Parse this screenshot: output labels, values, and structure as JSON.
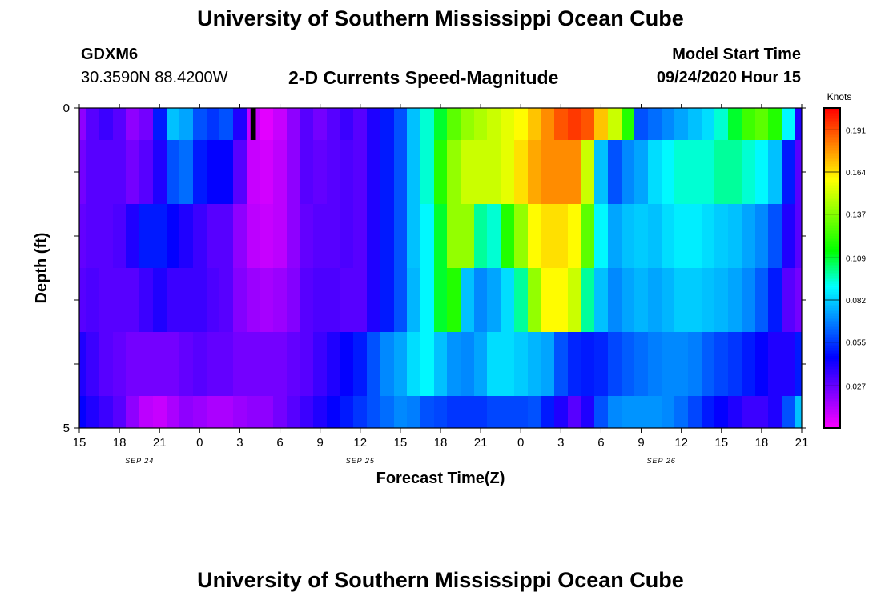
{
  "header": {
    "title": "University of Southern Mississippi Ocean Cube",
    "station_id": "GDXM6",
    "coordinates": "30.3590N 88.4200W",
    "plot_title": "2-D Currents Speed-Magnitude",
    "model_start_label": "Model Start Time",
    "model_start_value": "09/24/2020 Hour 15"
  },
  "footer": {
    "title": "University of Southern Mississippi Ocean Cube"
  },
  "colors": {
    "scale": [
      "#ff00ff",
      "#8000ff",
      "#0000ff",
      "#0080ff",
      "#00ffff",
      "#00ff00",
      "#80ff00",
      "#ffff00",
      "#ff8000",
      "#ff0000"
    ]
  },
  "chart_data": {
    "type": "heatmap",
    "title": "2-D Currents Speed-Magnitude",
    "xlabel": "Forecast Time(Z)",
    "ylabel": "Depth (ft)",
    "x_tick_labels": [
      "15",
      "18",
      "21",
      "0",
      "3",
      "6",
      "9",
      "12",
      "15",
      "18",
      "21",
      "0",
      "3",
      "6",
      "9",
      "12",
      "15",
      "18",
      "21"
    ],
    "x_ticks_hours": [
      0,
      3,
      6,
      9,
      12,
      15,
      18,
      21,
      24,
      27,
      30,
      33,
      36,
      39,
      42,
      45,
      48,
      51,
      54
    ],
    "xlim_hours": [
      0,
      54
    ],
    "date_labels": [
      {
        "text": "SEP 24",
        "hour": 4.5
      },
      {
        "text": "SEP 25",
        "hour": 21
      },
      {
        "text": "SEP 26",
        "hour": 43.5
      }
    ],
    "y_tick_labels": [
      "0",
      "5"
    ],
    "ylim_ft": [
      0,
      5
    ],
    "colorbar": {
      "unit": "Knots",
      "range": [
        0,
        0.205
      ],
      "labels": [
        "0.191",
        "0.164",
        "0.137",
        "0.109",
        "0.082",
        "0.055",
        "0.027"
      ]
    },
    "depth_layers_ft": [
      [
        0,
        0.5
      ],
      [
        0.5,
        1.5
      ],
      [
        1.5,
        2.5
      ],
      [
        2.5,
        3.5
      ],
      [
        3.5,
        4.5
      ],
      [
        4.5,
        5.0
      ]
    ],
    "time_hours": [
      0,
      1,
      2,
      3,
      4,
      5,
      6,
      7,
      8,
      9,
      10,
      11,
      12,
      13,
      14,
      15,
      16,
      17,
      18,
      19,
      20,
      21,
      22,
      23,
      24,
      25,
      26,
      27,
      28,
      29,
      30,
      31,
      32,
      33,
      34,
      35,
      36,
      37,
      38,
      39,
      40,
      41,
      42,
      43,
      44,
      45,
      46,
      47,
      48,
      49,
      50,
      51,
      52,
      53,
      54
    ],
    "speed_knots": [
      [
        0.02,
        0.03,
        0.035,
        0.03,
        0.02,
        0.025,
        0.05,
        0.08,
        0.075,
        0.06,
        0.055,
        0.06,
        0.04,
        0.01,
        0.005,
        0.01,
        0.02,
        0.03,
        0.025,
        0.03,
        0.035,
        0.03,
        0.04,
        0.05,
        0.06,
        0.08,
        0.095,
        0.11,
        0.13,
        0.14,
        0.145,
        0.15,
        0.155,
        0.16,
        0.17,
        0.18,
        0.19,
        0.195,
        0.19,
        0.17,
        0.15,
        0.12,
        0.06,
        0.065,
        0.07,
        0.075,
        0.08,
        0.085,
        0.095,
        0.11,
        0.125,
        0.13,
        0.12,
        0.09,
        0.04
      ],
      [
        0.025,
        0.03,
        0.03,
        0.03,
        0.025,
        0.03,
        0.04,
        0.06,
        0.065,
        0.05,
        0.045,
        0.045,
        0.03,
        0.01,
        0.008,
        0.012,
        0.02,
        0.03,
        0.028,
        0.03,
        0.032,
        0.03,
        0.04,
        0.05,
        0.06,
        0.08,
        0.095,
        0.12,
        0.14,
        0.15,
        0.15,
        0.15,
        0.155,
        0.165,
        0.175,
        0.18,
        0.18,
        0.18,
        0.15,
        0.08,
        0.06,
        0.07,
        0.075,
        0.085,
        0.09,
        0.095,
        0.095,
        0.095,
        0.1,
        0.1,
        0.095,
        0.09,
        0.08,
        0.05,
        0.03
      ],
      [
        0.028,
        0.03,
        0.03,
        0.032,
        0.04,
        0.05,
        0.05,
        0.045,
        0.04,
        0.035,
        0.03,
        0.03,
        0.02,
        0.012,
        0.01,
        0.012,
        0.02,
        0.028,
        0.03,
        0.03,
        0.032,
        0.03,
        0.04,
        0.05,
        0.06,
        0.08,
        0.09,
        0.11,
        0.14,
        0.14,
        0.1,
        0.095,
        0.12,
        0.14,
        0.16,
        0.165,
        0.165,
        0.16,
        0.13,
        0.09,
        0.075,
        0.08,
        0.082,
        0.08,
        0.085,
        0.088,
        0.088,
        0.085,
        0.082,
        0.08,
        0.075,
        0.07,
        0.06,
        0.04,
        0.03
      ],
      [
        0.03,
        0.032,
        0.03,
        0.03,
        0.03,
        0.035,
        0.04,
        0.035,
        0.035,
        0.035,
        0.032,
        0.03,
        0.022,
        0.018,
        0.016,
        0.018,
        0.022,
        0.03,
        0.032,
        0.032,
        0.03,
        0.03,
        0.04,
        0.05,
        0.06,
        0.078,
        0.09,
        0.11,
        0.12,
        0.08,
        0.07,
        0.075,
        0.085,
        0.1,
        0.14,
        0.16,
        0.16,
        0.15,
        0.1,
        0.08,
        0.07,
        0.075,
        0.078,
        0.075,
        0.078,
        0.082,
        0.082,
        0.08,
        0.078,
        0.075,
        0.07,
        0.062,
        0.05,
        0.03,
        0.025
      ],
      [
        0.04,
        0.035,
        0.03,
        0.028,
        0.025,
        0.025,
        0.025,
        0.025,
        0.028,
        0.03,
        0.028,
        0.028,
        0.025,
        0.025,
        0.025,
        0.025,
        0.028,
        0.03,
        0.035,
        0.04,
        0.045,
        0.05,
        0.06,
        0.07,
        0.075,
        0.085,
        0.09,
        0.08,
        0.072,
        0.07,
        0.075,
        0.085,
        0.085,
        0.082,
        0.078,
        0.075,
        0.06,
        0.052,
        0.05,
        0.052,
        0.058,
        0.062,
        0.065,
        0.068,
        0.07,
        0.07,
        0.068,
        0.062,
        0.058,
        0.055,
        0.05,
        0.045,
        0.04,
        0.04,
        0.05
      ],
      [
        0.045,
        0.04,
        0.035,
        0.03,
        0.02,
        0.012,
        0.01,
        0.015,
        0.02,
        0.018,
        0.015,
        0.015,
        0.018,
        0.02,
        0.02,
        0.025,
        0.03,
        0.035,
        0.04,
        0.045,
        0.05,
        0.055,
        0.06,
        0.065,
        0.07,
        0.068,
        0.06,
        0.058,
        0.055,
        0.055,
        0.055,
        0.058,
        0.058,
        0.058,
        0.06,
        0.05,
        0.04,
        0.03,
        0.04,
        0.06,
        0.07,
        0.072,
        0.072,
        0.072,
        0.07,
        0.065,
        0.058,
        0.05,
        0.045,
        0.04,
        0.035,
        0.035,
        0.04,
        0.06,
        0.08
      ]
    ],
    "missing_markers": [
      {
        "hour_start": 12.8,
        "hour_end": 13.2,
        "depth_start_ft": 0,
        "depth_end_ft": 0.5
      }
    ]
  }
}
